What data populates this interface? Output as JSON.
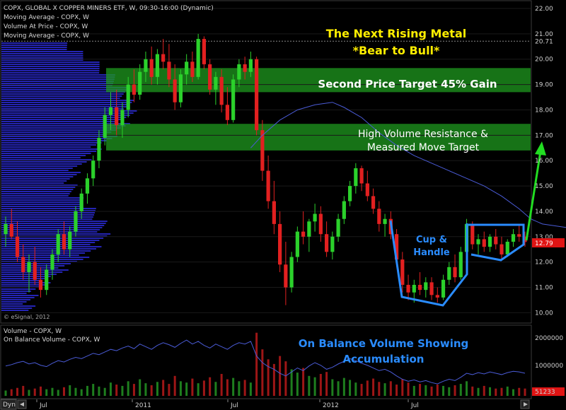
{
  "header": {
    "legend_lines": [
      "COPX, GLOBAL X COPPER MINERS ETF, W, 09:30-16:00 (Dynamic)",
      "Moving Average - COPX, W",
      "Volume At Price - COPX, W",
      "Moving Average - COPX, W"
    ],
    "watermark": "© eSignal, 2012"
  },
  "annotations": {
    "title_line1": "The Next Rising Metal",
    "title_line2": "*Bear to Bull*",
    "zone1": "Second Price Target 45% Gain",
    "zone2_line1": "High Volume Resistance &",
    "zone2_line2": "Measured Move Target",
    "pattern_line1": "Cup &",
    "pattern_line2": "Handle",
    "obv_line1": "On Balance Volume Showing",
    "obv_line2": "Accumulation"
  },
  "lower_panel": {
    "legend_lines": [
      "Volume - COPX, W",
      "On Balance Volume - COPX, W"
    ]
  },
  "footer": {
    "dyn_label": "Dyn"
  },
  "colors": {
    "up": "#2bd12b",
    "down": "#e22020",
    "ma": "#4a5bd6",
    "vap": "#2828c8",
    "zone": "#1f9a1f",
    "annotation_title": "#ffee00",
    "annotation_blue": "#2a8cff",
    "arrow": "#22dd22",
    "last_price_bg": "#e01414"
  },
  "chart_data": {
    "type": "candlestick",
    "symbol": "COPX",
    "interval": "Weekly",
    "price_axis": {
      "ticks": [
        "22.00",
        "21.00",
        "20.71",
        "20.00",
        "19.00",
        "18.00",
        "17.00",
        "16.00",
        "15.00",
        "14.00",
        "13.00",
        "12.79",
        "12.00",
        "11.00",
        "10.00"
      ],
      "range": [
        9.9,
        22.0
      ]
    },
    "last_price": "12.79",
    "reference_level": 20.71,
    "x_axis_labels": [
      "Jul",
      "2011",
      "Jul",
      "2012",
      "Jul"
    ],
    "volume_axis": {
      "ticks": [
        "2000000",
        "1000000",
        "51233"
      ]
    },
    "zones": [
      {
        "low": 18.7,
        "high": 19.65
      },
      {
        "low": 16.4,
        "high": 17.45
      }
    ],
    "candles": [
      [
        13.1,
        13.8,
        12.6,
        13.5
      ],
      [
        13.5,
        14.1,
        12.9,
        13.0
      ],
      [
        13.0,
        13.6,
        12.0,
        12.2
      ],
      [
        12.2,
        12.7,
        11.3,
        11.6
      ],
      [
        11.6,
        12.3,
        10.8,
        12.0
      ],
      [
        12.0,
        12.6,
        11.1,
        11.3
      ],
      [
        11.3,
        11.8,
        10.6,
        10.9
      ],
      [
        10.9,
        11.9,
        10.7,
        11.7
      ],
      [
        11.7,
        12.5,
        11.3,
        12.3
      ],
      [
        12.3,
        13.3,
        12.0,
        13.1
      ],
      [
        13.1,
        13.6,
        12.3,
        12.5
      ],
      [
        12.5,
        13.4,
        12.2,
        13.2
      ],
      [
        13.2,
        14.2,
        13.0,
        14.0
      ],
      [
        14.0,
        14.9,
        13.7,
        14.7
      ],
      [
        14.7,
        15.5,
        14.3,
        15.3
      ],
      [
        15.3,
        16.2,
        15.0,
        16.0
      ],
      [
        16.0,
        17.2,
        15.7,
        16.9
      ],
      [
        16.9,
        18.1,
        16.6,
        17.8
      ],
      [
        17.8,
        18.7,
        17.2,
        18.1
      ],
      [
        18.1,
        18.8,
        17.0,
        17.4
      ],
      [
        17.4,
        18.3,
        16.9,
        18.0
      ],
      [
        18.0,
        19.3,
        17.7,
        19.0
      ],
      [
        19.0,
        19.6,
        18.3,
        18.6
      ],
      [
        18.6,
        19.8,
        18.4,
        19.5
      ],
      [
        19.5,
        20.3,
        19.1,
        20.0
      ],
      [
        20.0,
        20.5,
        19.0,
        19.3
      ],
      [
        19.3,
        20.4,
        19.0,
        20.2
      ],
      [
        20.2,
        20.8,
        19.6,
        19.9
      ],
      [
        19.9,
        20.6,
        18.9,
        19.2
      ],
      [
        19.2,
        19.8,
        18.0,
        18.3
      ],
      [
        18.3,
        19.6,
        18.1,
        19.4
      ],
      [
        19.4,
        20.2,
        19.0,
        19.9
      ],
      [
        19.9,
        20.3,
        19.1,
        19.3
      ],
      [
        19.3,
        21.0,
        19.2,
        20.8
      ],
      [
        20.8,
        20.9,
        19.6,
        19.8
      ],
      [
        19.8,
        20.0,
        18.6,
        18.8
      ],
      [
        18.8,
        19.5,
        18.2,
        19.3
      ],
      [
        19.3,
        19.6,
        17.9,
        18.2
      ],
      [
        18.2,
        18.9,
        17.4,
        17.6
      ],
      [
        17.6,
        19.4,
        17.5,
        19.2
      ],
      [
        19.2,
        20.0,
        18.9,
        19.8
      ],
      [
        19.8,
        20.1,
        19.2,
        19.5
      ],
      [
        19.5,
        20.3,
        19.3,
        20.0
      ],
      [
        20.0,
        20.1,
        17.0,
        17.2
      ],
      [
        17.2,
        17.6,
        15.2,
        15.6
      ],
      [
        15.6,
        16.2,
        14.1,
        14.4
      ],
      [
        14.4,
        15.2,
        13.1,
        13.5
      ],
      [
        13.5,
        14.0,
        11.6,
        11.9
      ],
      [
        11.9,
        12.8,
        10.3,
        11.0
      ],
      [
        11.0,
        12.4,
        10.8,
        12.2
      ],
      [
        12.2,
        13.4,
        12.0,
        13.2
      ],
      [
        13.2,
        14.0,
        12.7,
        13.0
      ],
      [
        13.0,
        13.7,
        12.4,
        13.6
      ],
      [
        13.6,
        14.3,
        13.2,
        13.9
      ],
      [
        13.9,
        14.2,
        12.8,
        13.1
      ],
      [
        13.1,
        13.6,
        12.2,
        12.4
      ],
      [
        12.4,
        13.2,
        12.1,
        13.0
      ],
      [
        13.0,
        13.9,
        12.8,
        13.7
      ],
      [
        13.7,
        14.6,
        13.5,
        14.4
      ],
      [
        14.4,
        15.2,
        14.2,
        15.0
      ],
      [
        15.0,
        15.9,
        14.7,
        15.7
      ],
      [
        15.7,
        15.8,
        14.8,
        15.1
      ],
      [
        15.1,
        15.6,
        14.4,
        14.6
      ],
      [
        14.6,
        14.9,
        13.9,
        14.1
      ],
      [
        14.1,
        14.4,
        13.2,
        13.5
      ],
      [
        13.5,
        13.9,
        13.0,
        13.7
      ],
      [
        13.7,
        14.0,
        12.9,
        13.1
      ],
      [
        13.1,
        13.3,
        11.9,
        12.1
      ],
      [
        12.1,
        12.4,
        10.8,
        11.1
      ],
      [
        11.1,
        11.5,
        10.5,
        10.8
      ],
      [
        10.8,
        11.3,
        10.4,
        11.1
      ],
      [
        11.1,
        11.6,
        10.7,
        10.9
      ],
      [
        10.9,
        11.4,
        10.6,
        11.2
      ],
      [
        11.2,
        11.4,
        10.5,
        10.7
      ],
      [
        10.7,
        11.0,
        10.4,
        10.6
      ],
      [
        10.6,
        11.5,
        10.5,
        11.3
      ],
      [
        11.3,
        12.0,
        11.1,
        11.8
      ],
      [
        11.8,
        12.3,
        11.2,
        11.4
      ],
      [
        11.4,
        12.6,
        11.3,
        12.4
      ],
      [
        12.4,
        13.7,
        12.2,
        13.5
      ],
      [
        13.5,
        13.6,
        12.5,
        12.7
      ],
      [
        12.7,
        13.1,
        12.3,
        12.9
      ],
      [
        12.9,
        13.2,
        12.4,
        12.6
      ],
      [
        12.6,
        13.1,
        12.4,
        13.0
      ],
      [
        13.0,
        13.3,
        12.5,
        12.7
      ],
      [
        12.7,
        13.0,
        12.1,
        12.3
      ],
      [
        12.3,
        12.9,
        12.2,
        12.8
      ],
      [
        12.8,
        13.3,
        12.6,
        13.1
      ],
      [
        13.1,
        13.5,
        12.8,
        13.0
      ],
      [
        13.0,
        13.2,
        12.6,
        12.79
      ]
    ],
    "moving_average": [
      {
        "index": 42,
        "value": 16.5
      },
      {
        "index": 44,
        "value": 17.0
      },
      {
        "index": 47,
        "value": 17.6
      },
      {
        "index": 50,
        "value": 18.0
      },
      {
        "index": 53,
        "value": 18.2
      },
      {
        "index": 56,
        "value": 18.3
      },
      {
        "index": 58,
        "value": 18.1
      },
      {
        "index": 61,
        "value": 17.7
      },
      {
        "index": 64,
        "value": 17.1
      },
      {
        "index": 67,
        "value": 16.6
      },
      {
        "index": 70,
        "value": 16.2
      },
      {
        "index": 73,
        "value": 15.9
      },
      {
        "index": 76,
        "value": 15.6
      },
      {
        "index": 79,
        "value": 15.3
      },
      {
        "index": 82,
        "value": 15.0
      },
      {
        "index": 85,
        "value": 14.6
      },
      {
        "index": 88,
        "value": 14.1
      },
      {
        "index": 90,
        "value": 13.7
      },
      {
        "index": 92,
        "value": 13.5
      },
      {
        "index": 95,
        "value": 13.4
      },
      {
        "index": 98,
        "value": 13.3
      }
    ],
    "volume": [
      0.08,
      0.1,
      0.12,
      0.15,
      0.09,
      0.11,
      0.14,
      0.1,
      0.12,
      0.09,
      0.13,
      0.16,
      0.12,
      0.1,
      0.15,
      0.18,
      0.14,
      0.12,
      0.2,
      0.17,
      0.15,
      0.22,
      0.18,
      0.25,
      0.19,
      0.16,
      0.21,
      0.24,
      0.18,
      0.3,
      0.22,
      0.2,
      0.26,
      0.19,
      0.23,
      0.28,
      0.21,
      0.33,
      0.25,
      0.27,
      0.22,
      0.24,
      0.2,
      0.95,
      0.7,
      0.55,
      0.48,
      0.6,
      0.52,
      0.4,
      0.35,
      0.42,
      0.3,
      0.28,
      0.33,
      0.36,
      0.25,
      0.22,
      0.27,
      0.24,
      0.2,
      0.18,
      0.23,
      0.26,
      0.21,
      0.19,
      0.22,
      0.17,
      0.25,
      0.2,
      0.15,
      0.18,
      0.16,
      0.14,
      0.17,
      0.15,
      0.13,
      0.16,
      0.18,
      0.22,
      0.14,
      0.12,
      0.15,
      0.13,
      0.11,
      0.12,
      0.14,
      0.1,
      0.12,
      0.11
    ],
    "obv": [
      0.45,
      0.47,
      0.5,
      0.52,
      0.48,
      0.5,
      0.46,
      0.44,
      0.49,
      0.53,
      0.51,
      0.55,
      0.58,
      0.56,
      0.6,
      0.64,
      0.62,
      0.66,
      0.7,
      0.68,
      0.72,
      0.75,
      0.71,
      0.78,
      0.74,
      0.7,
      0.76,
      0.8,
      0.77,
      0.73,
      0.79,
      0.84,
      0.78,
      0.82,
      0.76,
      0.72,
      0.78,
      0.74,
      0.7,
      0.76,
      0.8,
      0.78,
      0.82,
      0.6,
      0.5,
      0.44,
      0.4,
      0.34,
      0.3,
      0.36,
      0.42,
      0.38,
      0.45,
      0.5,
      0.46,
      0.4,
      0.43,
      0.48,
      0.52,
      0.56,
      0.53,
      0.49,
      0.46,
      0.42,
      0.38,
      0.4,
      0.36,
      0.3,
      0.25,
      0.22,
      0.24,
      0.21,
      0.23,
      0.2,
      0.18,
      0.22,
      0.25,
      0.23,
      0.28,
      0.34,
      0.32,
      0.35,
      0.33,
      0.36,
      0.34,
      0.32,
      0.35,
      0.37,
      0.36,
      0.34
    ]
  }
}
